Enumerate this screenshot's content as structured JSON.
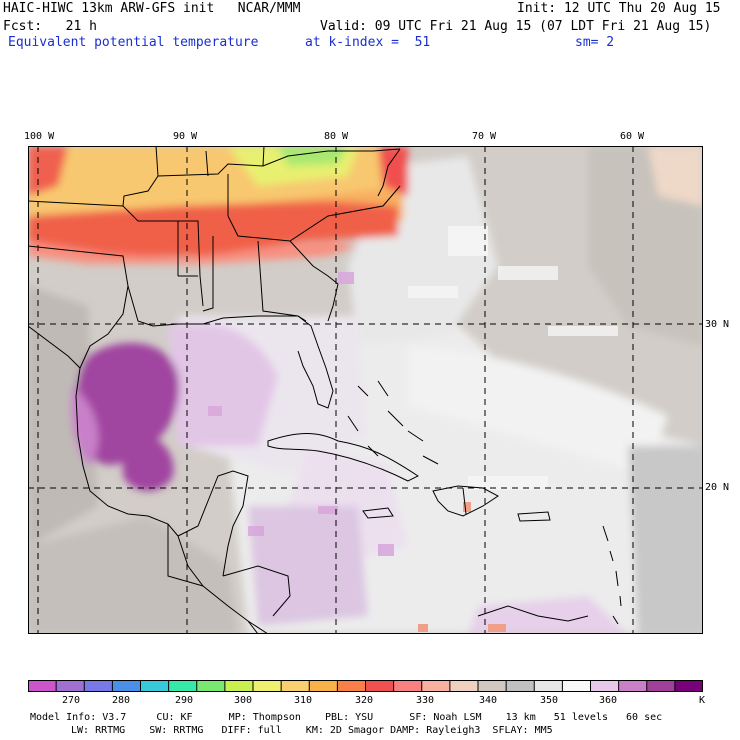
{
  "header": {
    "model_title": "HAIC-HIWC 13km ARW-GFS init   NCAR/MMM",
    "init": "Init: 12 UTC Thu 20 Aug 15",
    "fcst": "Fcst:   21 h",
    "valid": "Valid: 09 UTC Fri 21 Aug 15 (07 LDT Fri 21 Aug 15)",
    "field": "Equivalent potential temperature",
    "level": "at k-index =  51",
    "smoothing": "sm= 2"
  },
  "map": {
    "lon_labels": [
      "100 W",
      "90 W",
      "80 W",
      "70 W",
      "60 W"
    ],
    "lat_labels": [
      "30 N",
      "20 N"
    ]
  },
  "colorbar": {
    "unit": "K",
    "labels": [
      "270",
      "280",
      "290",
      "300",
      "310",
      "320",
      "330",
      "340",
      "350",
      "360"
    ],
    "colors": [
      "#cc55cc",
      "#a070d0",
      "#7878e8",
      "#4a90e8",
      "#38c8d8",
      "#38e8a8",
      "#78e870",
      "#c8f050",
      "#f0f070",
      "#f8d070",
      "#f8b048",
      "#f88048",
      "#f05050",
      "#f88080",
      "#f8b0a0",
      "#f0d0c0",
      "#d0c8c0",
      "#c0c0c0",
      "#e6e6e6",
      "#f8f8f8",
      "#e8c8e8",
      "#c880c8",
      "#a04098",
      "#780078"
    ]
  },
  "footer": {
    "line1": "Model Info: V3.7     CU: KF      MP: Thompson    PBL: YSU      SF: Noah LSM    13 km   51 levels   60 sec",
    "line2": "LW: RRTMG    SW: RRTMG   DIFF: full    KM: 2D Smagor DAMP: Rayleigh3  SFLAY: MM5"
  }
}
